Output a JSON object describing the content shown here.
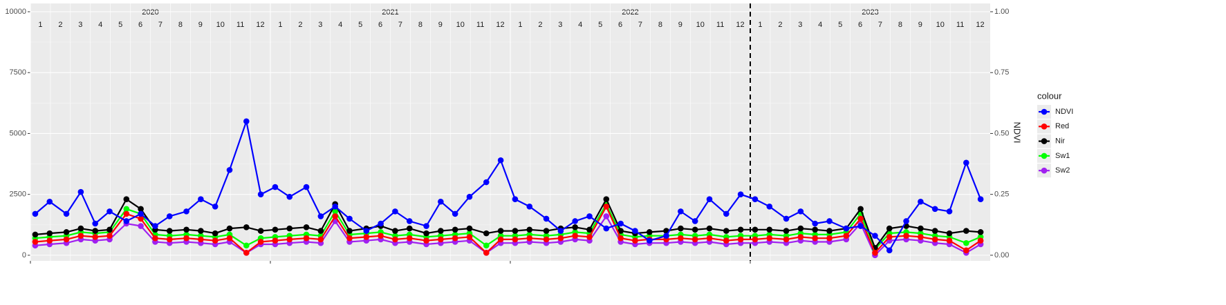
{
  "chart_data": {
    "type": "line",
    "x": [
      2020.02,
      2020.08,
      2020.15,
      2020.21,
      2020.27,
      2020.33,
      2020.4,
      2020.46,
      2020.52,
      2020.58,
      2020.65,
      2020.71,
      2020.77,
      2020.83,
      2020.9,
      2020.96,
      2021.02,
      2021.08,
      2021.15,
      2021.21,
      2021.27,
      2021.33,
      2021.4,
      2021.46,
      2021.52,
      2021.58,
      2021.65,
      2021.71,
      2021.77,
      2021.83,
      2021.9,
      2021.96,
      2022.02,
      2022.08,
      2022.15,
      2022.21,
      2022.27,
      2022.33,
      2022.4,
      2022.46,
      2022.52,
      2022.58,
      2022.65,
      2022.71,
      2022.77,
      2022.83,
      2022.9,
      2022.96,
      2023.02,
      2023.08,
      2023.15,
      2023.21,
      2023.27,
      2023.33,
      2023.4,
      2023.46,
      2023.52,
      2023.58,
      2023.65,
      2023.71,
      2023.77,
      2023.83,
      2023.9,
      2023.96
    ],
    "series": [
      {
        "name": "NDVI",
        "color": "#0000ff",
        "axis": "y2",
        "values": [
          0.17,
          0.22,
          0.17,
          0.26,
          0.13,
          0.18,
          0.14,
          0.17,
          0.12,
          0.16,
          0.18,
          0.23,
          0.2,
          0.35,
          0.55,
          0.25,
          0.28,
          0.24,
          0.28,
          0.16,
          0.2,
          0.15,
          0.1,
          0.13,
          0.18,
          0.14,
          0.12,
          0.22,
          0.17,
          0.24,
          0.3,
          0.39,
          0.23,
          0.2,
          0.15,
          0.1,
          0.14,
          0.16,
          0.11,
          0.13,
          0.1,
          0.06,
          0.08,
          0.18,
          0.14,
          0.23,
          0.17,
          0.25,
          0.23,
          0.2,
          0.15,
          0.18,
          0.13,
          0.14,
          0.11,
          0.12,
          0.08,
          0.02,
          0.14,
          0.22,
          0.19,
          0.18,
          0.38,
          0.23
        ]
      },
      {
        "name": "Red",
        "color": "#ff0000",
        "values": [
          550,
          600,
          650,
          800,
          750,
          800,
          1700,
          1500,
          700,
          650,
          700,
          650,
          600,
          700,
          100,
          550,
          600,
          650,
          700,
          650,
          1600,
          700,
          750,
          800,
          650,
          700,
          600,
          650,
          700,
          750,
          100,
          650,
          650,
          700,
          650,
          700,
          800,
          750,
          2000,
          700,
          600,
          650,
          650,
          700,
          650,
          700,
          600,
          650,
          650,
          700,
          650,
          750,
          700,
          700,
          800,
          1500,
          100,
          750,
          800,
          750,
          650,
          600,
          200,
          600
        ]
      },
      {
        "name": "Nir",
        "color": "#000000",
        "values": [
          850,
          900,
          950,
          1100,
          1000,
          1050,
          2300,
          1900,
          1050,
          1000,
          1050,
          1000,
          900,
          1100,
          1150,
          1000,
          1050,
          1100,
          1150,
          1000,
          2100,
          1000,
          1100,
          1200,
          1000,
          1100,
          900,
          1000,
          1050,
          1100,
          900,
          1000,
          1000,
          1050,
          1000,
          1100,
          1150,
          1050,
          2300,
          1000,
          900,
          950,
          1000,
          1100,
          1050,
          1100,
          1000,
          1050,
          1050,
          1050,
          1000,
          1100,
          1050,
          1000,
          1100,
          1900,
          300,
          1100,
          1200,
          1100,
          1000,
          900,
          1000,
          950
        ]
      },
      {
        "name": "Sw1",
        "color": "#00ff00",
        "values": [
          700,
          750,
          800,
          950,
          900,
          950,
          1900,
          1700,
          850,
          800,
          850,
          800,
          750,
          850,
          400,
          700,
          750,
          800,
          850,
          800,
          1800,
          850,
          900,
          950,
          800,
          850,
          750,
          800,
          850,
          900,
          400,
          800,
          800,
          850,
          800,
          850,
          950,
          900,
          2100,
          850,
          750,
          800,
          800,
          850,
          800,
          850,
          750,
          800,
          800,
          850,
          800,
          900,
          850,
          850,
          950,
          1700,
          250,
          900,
          950,
          900,
          800,
          750,
          500,
          750
        ]
      },
      {
        "name": "Sw2",
        "color": "#a020f0",
        "values": [
          400,
          450,
          500,
          650,
          600,
          650,
          1300,
          1200,
          550,
          500,
          550,
          500,
          450,
          550,
          100,
          450,
          450,
          500,
          550,
          500,
          1400,
          550,
          600,
          650,
          500,
          550,
          450,
          500,
          550,
          600,
          100,
          500,
          500,
          550,
          500,
          550,
          650,
          600,
          1600,
          550,
          450,
          500,
          500,
          550,
          500,
          550,
          450,
          500,
          500,
          550,
          500,
          600,
          550,
          550,
          650,
          1300,
          0,
          600,
          650,
          600,
          500,
          450,
          100,
          450
        ]
      }
    ],
    "years": [
      2020,
      2021,
      2022,
      2023
    ],
    "months": [
      1,
      2,
      3,
      4,
      5,
      6,
      7,
      8,
      9,
      10,
      11,
      12
    ],
    "xlim": [
      2020,
      2024
    ],
    "xticks": [
      2020,
      2021,
      2022,
      2023
    ],
    "ylim": [
      -230,
      10340
    ],
    "yticks": [
      0,
      2500,
      5000,
      7500,
      10000
    ],
    "y2lim": [
      -0.023,
      1.034
    ],
    "y2ticks": [
      {
        "value": 0,
        "label": "0.00"
      },
      {
        "value": 0.25,
        "label": "0.25"
      },
      {
        "value": 0.5,
        "label": "0.50"
      },
      {
        "value": 0.75,
        "label": "0.75"
      },
      {
        "value": 1,
        "label": "1.00"
      }
    ],
    "y2_label": "NDVI",
    "vline": 2023,
    "grid": true,
    "legend_title": "colour",
    "legend_position": "right"
  }
}
